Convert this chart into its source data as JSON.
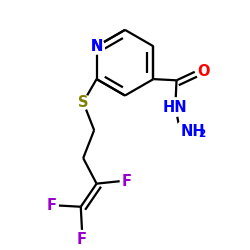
{
  "bg_color": "#ffffff",
  "bond_color": "#000000",
  "N_color": "#0000ff",
  "O_color": "#ff0000",
  "S_color": "#808000",
  "F_color": "#9900cc",
  "line_width": 1.6,
  "font_size": 10.5,
  "font_size_sub": 7.5,
  "figsize": [
    2.5,
    2.5
  ],
  "dpi": 100,
  "xlim": [
    0.0,
    1.0
  ],
  "ylim": [
    0.0,
    1.0
  ]
}
